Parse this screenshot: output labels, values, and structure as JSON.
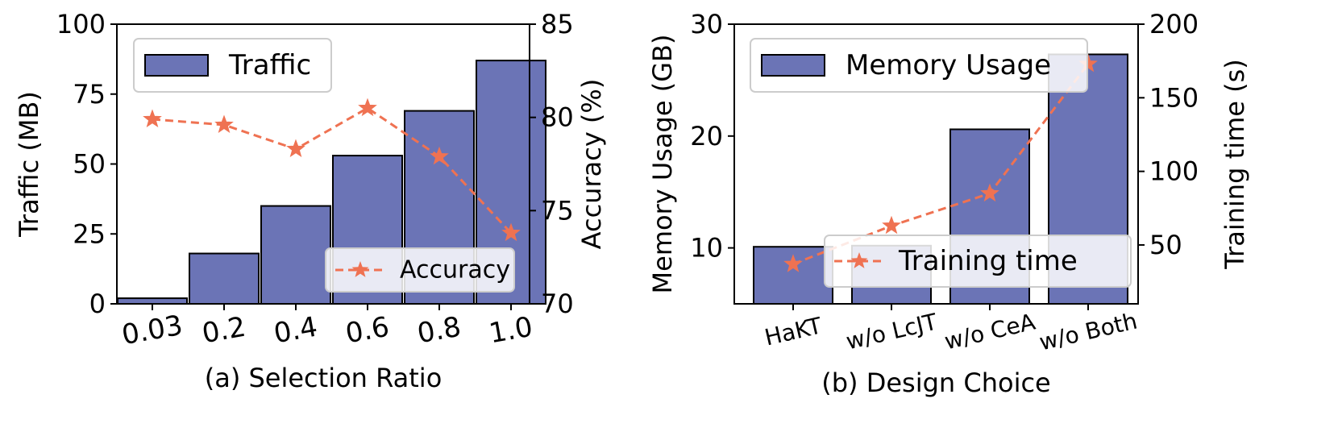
{
  "colors": {
    "bar_fill": "#6b74b6",
    "bar_edge": "#000000",
    "line": "#ef7252",
    "legend_bg": "#ffffff",
    "legend_edge": "#cccccc"
  },
  "chart_data": [
    {
      "type": "bar",
      "subtitle": "(a) Selection Ratio",
      "xlabel": "(a) Selection Ratio",
      "categories": [
        "0.03",
        "0.2",
        "0.4",
        "0.6",
        "0.8",
        "1.0"
      ],
      "ylabel": "Traffic (MB)",
      "ylim": [
        0,
        100
      ],
      "yticks": [
        "0",
        "25",
        "50",
        "75",
        "100"
      ],
      "series": [
        {
          "name": "Traffic",
          "type": "bar",
          "axis": "left",
          "values": [
            2,
            18,
            35,
            53,
            69,
            87
          ]
        },
        {
          "name": "Accuracy",
          "type": "line",
          "axis": "right",
          "style": "dashed",
          "marker": "star",
          "values": [
            79.9,
            79.6,
            78.3,
            80.5,
            77.9,
            73.8
          ]
        }
      ],
      "ylabel_right": "Accuracy (%)",
      "ylim_right": [
        70,
        85
      ],
      "yticks_right": [
        "70",
        "75",
        "80",
        "85"
      ],
      "legends": [
        {
          "label": "Traffic",
          "location": "upper-left"
        },
        {
          "label": "Accuracy",
          "location": "lower-right"
        }
      ],
      "tick_rotation": "slight-diagonal"
    },
    {
      "type": "bar",
      "subtitle": "(b) Design Choice",
      "xlabel": "(b) Design Choice",
      "categories": [
        "HaKT",
        "w/o LcJT",
        "w/o CeA",
        "w/o Both"
      ],
      "ylabel": "Memory Usage (GB)",
      "ylim": [
        5,
        30
      ],
      "yticks": [
        "10",
        "20",
        "30"
      ],
      "series": [
        {
          "name": "Memory Usage",
          "type": "bar",
          "axis": "left",
          "values": [
            10.1,
            10.2,
            20.6,
            27.3
          ]
        },
        {
          "name": "Training time",
          "type": "line",
          "axis": "right",
          "style": "dashed",
          "marker": "star",
          "values": [
            37,
            63,
            85,
            173
          ]
        }
      ],
      "ylabel_right": "Training time (s)",
      "ylim_right": [
        10,
        200
      ],
      "yticks_right": [
        "50",
        "100",
        "150",
        "200"
      ],
      "legends": [
        {
          "label": "Memory Usage",
          "location": "upper-left"
        },
        {
          "label": "Training time",
          "location": "lower-right"
        }
      ],
      "tick_rotation": "slight-diagonal"
    }
  ]
}
